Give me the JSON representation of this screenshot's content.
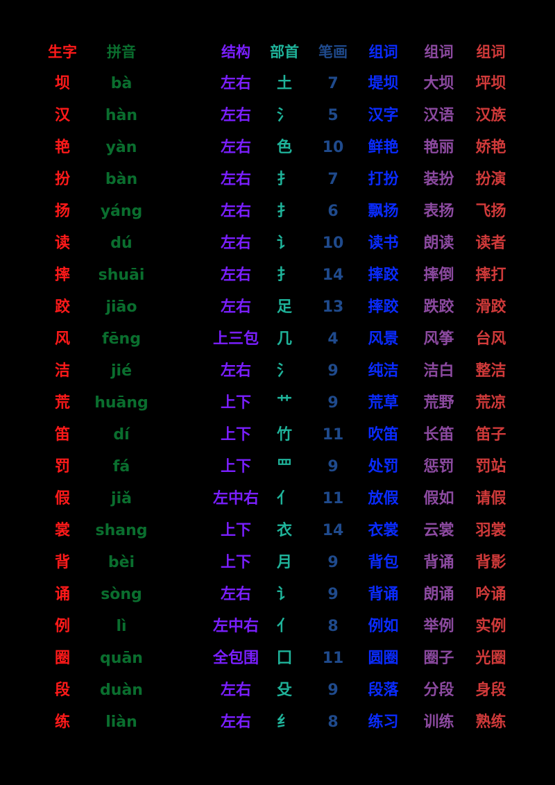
{
  "colors": {
    "background": "#000000",
    "character": "#ff1a1a",
    "pinyin": "#0a6e2e",
    "structure": "#7a1fff",
    "radical": "#1fb39a",
    "strokes": "#1f4a8c",
    "word1": "#0a2bff",
    "word2": "#8c4aa0",
    "word3": "#d03a3a"
  },
  "table": {
    "headers": [
      "生字",
      "拼音",
      "结构",
      "部首",
      "笔画",
      "组词",
      "组词",
      "组词"
    ],
    "rows": [
      [
        "坝",
        "bà",
        "左右",
        "土",
        "7",
        "堤坝",
        "大坝",
        "坪坝"
      ],
      [
        "汉",
        "hàn",
        "左右",
        "氵",
        "5",
        "汉字",
        "汉语",
        "汉族"
      ],
      [
        "艳",
        "yàn",
        "左右",
        "色",
        "10",
        "鲜艳",
        "艳丽",
        "娇艳"
      ],
      [
        "扮",
        "bàn",
        "左右",
        "扌",
        "7",
        "打扮",
        "装扮",
        "扮演"
      ],
      [
        "扬",
        "yáng",
        "左右",
        "扌",
        "6",
        "飘扬",
        "表扬",
        "飞扬"
      ],
      [
        "读",
        "dú",
        "左右",
        "讠",
        "10",
        "读书",
        "朗读",
        "读者"
      ],
      [
        "摔",
        "shuāi",
        "左右",
        "扌",
        "14",
        "摔跤",
        "摔倒",
        "摔打"
      ],
      [
        "跤",
        "jiāo",
        "左右",
        "足",
        "13",
        "摔跤",
        "跌跤",
        "滑跤"
      ],
      [
        "风",
        "fēng",
        "上三包",
        "几",
        "4",
        "风景",
        "风筝",
        "台风"
      ],
      [
        "洁",
        "jié",
        "左右",
        "氵",
        "9",
        "纯洁",
        "洁白",
        "整洁"
      ],
      [
        "荒",
        "huāng",
        "上下",
        "艹",
        "9",
        "荒草",
        "荒野",
        "荒凉"
      ],
      [
        "笛",
        "dí",
        "上下",
        "竹",
        "11",
        "吹笛",
        "长笛",
        "笛子"
      ],
      [
        "罚",
        "fá",
        "上下",
        "罒",
        "9",
        "处罚",
        "惩罚",
        "罚站"
      ],
      [
        "假",
        "jiǎ",
        "左中右",
        "亻",
        "11",
        "放假",
        "假如",
        "请假"
      ],
      [
        "裳",
        "shang",
        "上下",
        "衣",
        "14",
        "衣裳",
        "云裳",
        "羽裳"
      ],
      [
        "背",
        "bèi",
        "上下",
        "月",
        "9",
        "背包",
        "背诵",
        "背影"
      ],
      [
        "诵",
        "sòng",
        "左右",
        "讠",
        "9",
        "背诵",
        "朗诵",
        "吟诵"
      ],
      [
        "例",
        "lì",
        "左中右",
        "亻",
        "8",
        "例如",
        "举例",
        "实例"
      ],
      [
        "圈",
        "quān",
        "全包围",
        "囗",
        "11",
        "圆圈",
        "圈子",
        "光圈"
      ],
      [
        "段",
        "duàn",
        "左右",
        "殳",
        "9",
        "段落",
        "分段",
        "身段"
      ],
      [
        "练",
        "liàn",
        "左右",
        "纟",
        "8",
        "练习",
        "训练",
        "熟练"
      ]
    ]
  }
}
